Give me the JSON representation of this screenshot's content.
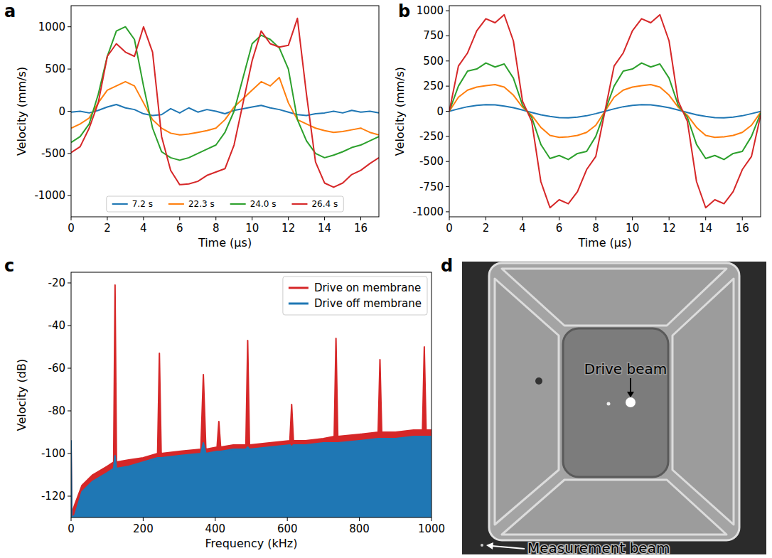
{
  "chart_data": [
    {
      "label": "a",
      "type": "line",
      "x_label": "Time (µs)",
      "y_label": "Velocity (mm/s)",
      "xlim": [
        0,
        17
      ],
      "xticks": [
        0,
        2,
        4,
        6,
        8,
        10,
        12,
        14,
        16
      ],
      "ylim": [
        -1250,
        1250
      ],
      "yticks": [
        -1000,
        -500,
        0,
        500,
        1000
      ],
      "legend": "lower center",
      "x": [
        0,
        0.5,
        1,
        1.5,
        2,
        2.5,
        3,
        3.5,
        4,
        4.5,
        5,
        5.5,
        6,
        6.5,
        7,
        7.5,
        8,
        8.5,
        9,
        9.5,
        10,
        10.5,
        11,
        11.5,
        12,
        12.5,
        13,
        13.5,
        14,
        14.5,
        15,
        15.5,
        16,
        16.5,
        17
      ],
      "series": [
        {
          "name": "7.2 s",
          "color": "#1f77b4",
          "values": [
            -10,
            0,
            -20,
            10,
            50,
            80,
            40,
            20,
            -30,
            -50,
            -40,
            30,
            -20,
            40,
            -10,
            20,
            0,
            -30,
            10,
            30,
            50,
            70,
            40,
            20,
            -10,
            -40,
            -50,
            -30,
            -20,
            0,
            -20,
            10,
            -10,
            0,
            -20
          ]
        },
        {
          "name": "22.3 s",
          "color": "#ff7f0e",
          "values": [
            -200,
            -150,
            -80,
            100,
            250,
            300,
            350,
            300,
            100,
            -100,
            -200,
            -260,
            -280,
            -270,
            -250,
            -230,
            -200,
            -100,
            50,
            150,
            250,
            350,
            300,
            400,
            100,
            -100,
            -150,
            -200,
            -230,
            -250,
            -240,
            -220,
            -200,
            -250,
            -280
          ]
        },
        {
          "name": "24.0 s",
          "color": "#2ca02c",
          "values": [
            -370,
            -300,
            -150,
            200,
            650,
            950,
            1000,
            850,
            300,
            -200,
            -480,
            -550,
            -580,
            -550,
            -500,
            -450,
            -400,
            -250,
            0,
            400,
            800,
            900,
            850,
            750,
            500,
            -100,
            -350,
            -500,
            -550,
            -520,
            -480,
            -430,
            -400,
            -350,
            -300
          ]
        },
        {
          "name": "26.4 s",
          "color": "#d62728",
          "values": [
            -490,
            -420,
            -200,
            100,
            650,
            800,
            700,
            650,
            1000,
            700,
            -300,
            -700,
            -870,
            -860,
            -830,
            -760,
            -720,
            -680,
            -400,
            100,
            600,
            950,
            800,
            760,
            780,
            1100,
            200,
            -600,
            -850,
            -900,
            -850,
            -750,
            -700,
            -620,
            -550
          ]
        }
      ]
    },
    {
      "label": "b",
      "type": "line",
      "x_label": "Time (µs)",
      "y_label": "Velocity (mm/s)",
      "xlim": [
        0,
        17
      ],
      "xticks": [
        0,
        2,
        4,
        6,
        8,
        10,
        12,
        14,
        16
      ],
      "ylim": [
        -1050,
        1050
      ],
      "yticks": [
        -1000,
        -750,
        -500,
        -250,
        0,
        250,
        500,
        750,
        1000
      ],
      "x": [
        0,
        0.5,
        1,
        1.5,
        2,
        2.5,
        3,
        3.5,
        4,
        4.5,
        5,
        5.5,
        6,
        6.5,
        7,
        7.5,
        8,
        8.5,
        9,
        9.5,
        10,
        10.5,
        11,
        11.5,
        12,
        12.5,
        13,
        13.5,
        14,
        14.5,
        15,
        15.5,
        16,
        16.5,
        17
      ],
      "series": [
        {
          "color": "#1f77b4",
          "values": [
            0,
            24,
            45,
            58,
            65,
            63,
            52,
            35,
            12,
            -12,
            -35,
            -52,
            -63,
            -65,
            -58,
            -45,
            -24,
            0,
            24,
            45,
            58,
            65,
            63,
            52,
            35,
            12,
            -12,
            -35,
            -52,
            -63,
            -65,
            -58,
            -45,
            -24,
            -2
          ]
        },
        {
          "color": "#ff7f0e",
          "values": [
            0,
            140,
            210,
            240,
            255,
            265,
            240,
            160,
            40,
            -40,
            -160,
            -240,
            -260,
            -255,
            -240,
            -210,
            -140,
            0,
            140,
            210,
            240,
            255,
            265,
            240,
            160,
            40,
            -40,
            -160,
            -240,
            -260,
            -255,
            -240,
            -210,
            -140,
            -10
          ]
        },
        {
          "color": "#2ca02c",
          "values": [
            0,
            250,
            400,
            420,
            480,
            440,
            470,
            330,
            60,
            -60,
            -330,
            -470,
            -440,
            -480,
            -420,
            -400,
            -250,
            0,
            250,
            400,
            420,
            480,
            440,
            470,
            330,
            60,
            -60,
            -330,
            -470,
            -440,
            -480,
            -420,
            -400,
            -250,
            -20
          ]
        },
        {
          "color": "#d62728",
          "values": [
            0,
            450,
            580,
            800,
            920,
            880,
            960,
            700,
            100,
            -100,
            -700,
            -960,
            -880,
            -920,
            -800,
            -580,
            -450,
            0,
            450,
            580,
            800,
            920,
            880,
            960,
            700,
            100,
            -100,
            -700,
            -960,
            -880,
            -920,
            -800,
            -580,
            -450,
            -40
          ]
        }
      ]
    },
    {
      "label": "c",
      "type": "area",
      "x_label": "Frequency (kHz)",
      "y_label": "Velocity (dB)",
      "xlim": [
        0,
        1000
      ],
      "xticks": [
        0,
        200,
        400,
        600,
        800,
        1000
      ],
      "ylim": [
        -130,
        -15
      ],
      "yticks": [
        -120,
        -100,
        -80,
        -60,
        -40,
        -20
      ],
      "legend": "upper right",
      "x": [
        0,
        2,
        10,
        30,
        60,
        100,
        118,
        122,
        126,
        160,
        200,
        240,
        245,
        250,
        300,
        360,
        367,
        374,
        405,
        410,
        415,
        450,
        485,
        490,
        495,
        550,
        607,
        612,
        617,
        650,
        700,
        730,
        735,
        740,
        800,
        852,
        857,
        862,
        900,
        950,
        975,
        980,
        985,
        1000
      ],
      "series": [
        {
          "name": "Drive on membrane",
          "color": "#d62728",
          "values": [
            -95,
            -128,
            -124,
            -115,
            -110,
            -106,
            -104,
            -21,
            -104,
            -103,
            -102,
            -100,
            -53,
            -100,
            -99,
            -98,
            -63,
            -98,
            -97,
            -85,
            -97,
            -96,
            -96,
            -47,
            -96,
            -95,
            -94,
            -77,
            -94,
            -94,
            -93,
            -92,
            -46,
            -92,
            -91,
            -90,
            -56,
            -90,
            -90,
            -89,
            -89,
            -50,
            -89,
            -89
          ]
        },
        {
          "name": "Drive off membrane",
          "color": "#1f77b4",
          "values": [
            -94,
            -130,
            -129,
            -118,
            -113,
            -109,
            -107,
            -101,
            -107,
            -106,
            -104,
            -102,
            -102,
            -102,
            -101,
            -100,
            -95,
            -100,
            -99,
            -99,
            -99,
            -98,
            -98,
            -97,
            -98,
            -97,
            -96,
            -97,
            -96,
            -96,
            -95,
            -95,
            -95,
            -95,
            -94,
            -93,
            -93,
            -93,
            -93,
            -92,
            -92,
            -92,
            -92,
            -92
          ]
        }
      ]
    }
  ],
  "image": {
    "label": "d",
    "labels": [
      "Drive beam",
      "Measurement beam"
    ]
  }
}
